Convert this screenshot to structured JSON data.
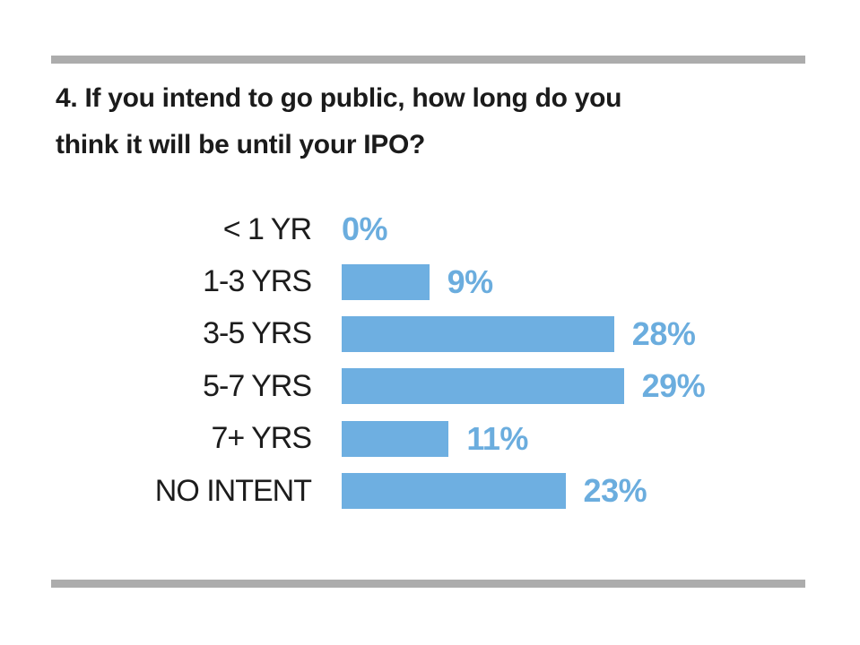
{
  "header": {
    "title_line1": "4. If you intend to go public, how long do you",
    "title_line2": "think it will be until your IPO?"
  },
  "decor": {
    "rule_color": "#acacac",
    "background_color": "#ffffff"
  },
  "chart_data": {
    "type": "bar",
    "orientation": "horizontal",
    "title": "4. If you intend to go public, how long do you think it will be until your IPO?",
    "categories": [
      "< 1 YR",
      "1-3 YRS",
      "3-5 YRS",
      "5-7 YRS",
      "7+ YRS",
      "NO INTENT"
    ],
    "values": [
      0,
      9,
      28,
      29,
      11,
      23
    ],
    "value_labels": [
      "0%",
      "9%",
      "28%",
      "29%",
      "11%",
      "23%"
    ],
    "unit": "percent",
    "xlim": [
      0,
      30
    ],
    "grid": false,
    "legend": false,
    "bar_color": "#6eafe1",
    "value_label_color": "#6badde",
    "category_label_color": "#1c1c1c"
  }
}
